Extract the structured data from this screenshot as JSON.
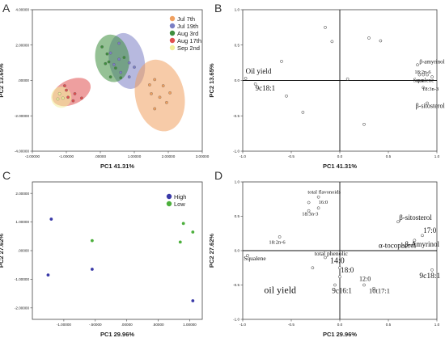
{
  "chart_data": [
    {
      "panel": "A",
      "type": "scatter",
      "xlabel": "PC1 41.31%",
      "ylabel": "PC2 13.65%",
      "xlim": [
        -2.0,
        3.0
      ],
      "ylim": [
        -4.0,
        4.0
      ],
      "x_ticks": [
        "-2.00000",
        "-1.00000",
        ".00000",
        "1.00000",
        "2.00000",
        "3.00000"
      ],
      "y_ticks": [
        "4.00000",
        "2.00000",
        ".00000",
        "-2.00000",
        "-4.00000"
      ],
      "legend_position": "top-right",
      "series": [
        {
          "name": "Jul 7th",
          "color": "#f0a060",
          "points": [
            [
              1.45,
              -0.25
            ],
            [
              1.6,
              0.05
            ],
            [
              1.85,
              -0.3
            ],
            [
              1.5,
              -0.75
            ],
            [
              1.75,
              -0.95
            ],
            [
              1.95,
              -1.25
            ],
            [
              1.6,
              -1.6
            ],
            [
              2.05,
              -0.7
            ]
          ],
          "ellipse": {
            "cx": 1.75,
            "cy": -0.85,
            "rx": 0.72,
            "ry": 2.05,
            "angle": -12
          }
        },
        {
          "name": "Jul 19th",
          "color": "#7b7fc4",
          "points": [
            [
              0.3,
              1.55
            ],
            [
              0.55,
              2.1
            ],
            [
              0.55,
              1.2
            ],
            [
              0.85,
              1.0
            ],
            [
              0.6,
              0.45
            ],
            [
              0.85,
              0.2
            ],
            [
              1.0,
              0.75
            ],
            [
              0.4,
              0.9
            ]
          ],
          "ellipse": {
            "cx": 0.78,
            "cy": 1.1,
            "rx": 0.52,
            "ry": 1.6,
            "angle": -12
          }
        },
        {
          "name": "Aug 3rd",
          "color": "#3e8e3e",
          "points": [
            [
              0.05,
              1.9
            ],
            [
              0.2,
              1.5
            ],
            [
              0.25,
              1.05
            ],
            [
              0.45,
              0.7
            ],
            [
              0.3,
              0.2
            ],
            [
              0.6,
              0.15
            ],
            [
              0.7,
              1.3
            ],
            [
              0.15,
              0.95
            ]
          ],
          "ellipse": {
            "cx": 0.35,
            "cy": 1.25,
            "rx": 0.5,
            "ry": 1.35,
            "angle": -8
          }
        },
        {
          "name": "Aug 17th",
          "color": "#e05050",
          "points": [
            [
              -1.05,
              -0.3
            ],
            [
              -1.0,
              -0.55
            ],
            [
              -0.75,
              -0.75
            ],
            [
              -0.95,
              -0.95
            ],
            [
              -0.55,
              -1.0
            ],
            [
              -0.8,
              -1.15
            ]
          ],
          "ellipse": {
            "cx": -0.85,
            "cy": -0.65,
            "rx": 0.6,
            "ry": 0.7,
            "angle": -25
          }
        },
        {
          "name": "Sep 2nd",
          "color": "#f2ef9a",
          "points": [
            [
              -1.2,
              -0.75
            ],
            [
              -1.1,
              -1.0
            ],
            [
              -1.25,
              -1.05
            ]
          ],
          "ellipse": {
            "cx": -1.15,
            "cy": -0.95,
            "rx": 0.3,
            "ry": 0.6,
            "angle": 0
          }
        }
      ]
    },
    {
      "panel": "B",
      "type": "scatter",
      "xlabel": "PC1 41.31%",
      "ylabel": "PC2 13.65%",
      "xlim": [
        -1.0,
        1.0
      ],
      "ylim": [
        -1.0,
        1.0
      ],
      "x_ticks": [
        "-1.0",
        "-0.5",
        "0.0",
        "0.5",
        "1.0"
      ],
      "y_ticks": [
        "1.0",
        "0.5",
        "0.0",
        "-0.5",
        "-1.0"
      ],
      "points": [
        [
          -0.97,
          0.03
        ],
        [
          -0.87,
          -0.05
        ],
        [
          -0.6,
          0.27
        ],
        [
          -0.55,
          -0.22
        ],
        [
          -0.38,
          -0.45
        ],
        [
          -0.15,
          0.75
        ],
        [
          -0.08,
          0.55
        ],
        [
          0.08,
          0.02
        ],
        [
          0.25,
          -0.62
        ],
        [
          0.3,
          0.6
        ],
        [
          0.42,
          0.56
        ],
        [
          0.8,
          0.22
        ],
        [
          0.82,
          0.08
        ],
        [
          0.86,
          0.08
        ],
        [
          0.86,
          -0.1
        ],
        [
          0.9,
          -0.32
        ],
        [
          0.9,
          0.08
        ],
        [
          0.95,
          0.05
        ]
      ],
      "labels": [
        {
          "text": "Oil yield",
          "x": -0.97,
          "y": 0.1,
          "size": 9
        },
        {
          "text": "9c18:1",
          "x": -0.87,
          "y": -0.14,
          "size": 9
        },
        {
          "text": "β-amyrinol",
          "x": 0.82,
          "y": 0.24,
          "size": 7
        },
        {
          "text": "18:2n-6",
          "x": 0.77,
          "y": 0.1,
          "size": 6.5
        },
        {
          "text": "16:0",
          "x": 0.78,
          "y": -0.02,
          "size": 5.5
        },
        {
          "text": "Squalene",
          "x": 0.97,
          "y": -0.02,
          "size": 7
        },
        {
          "text": "18:3n-3",
          "x": 0.85,
          "y": -0.14,
          "size": 6.5
        },
        {
          "text": "β-sitosterol",
          "x": 0.78,
          "y": -0.39,
          "size": 8
        }
      ]
    },
    {
      "panel": "C",
      "type": "scatter",
      "xlabel": "PC1 29.96%",
      "ylabel": "PC2 27.62%",
      "xlim": [
        -1.5,
        1.2
      ],
      "ylim": [
        -2.4,
        2.4
      ],
      "x_ticks": [
        "-1.00000",
        "-.50000",
        ".00000",
        ".50000",
        "1.00000"
      ],
      "y_ticks": [
        "2.00000",
        "1.00000",
        ".00000",
        "-1.00000",
        "-2.00000"
      ],
      "legend_position": "top-right",
      "series": [
        {
          "name": "High",
          "color": "#3a3aa8",
          "points": [
            [
              -1.2,
              1.1
            ],
            [
              -1.25,
              -0.85
            ],
            [
              -0.55,
              -0.65
            ],
            [
              1.05,
              -1.75
            ]
          ]
        },
        {
          "name": "Low",
          "color": "#4caf3c",
          "points": [
            [
              -0.55,
              0.35
            ],
            [
              0.9,
              0.95
            ],
            [
              1.05,
              0.65
            ],
            [
              0.85,
              0.3
            ]
          ]
        }
      ]
    },
    {
      "panel": "D",
      "type": "scatter",
      "xlabel": "PC1 29.96%",
      "ylabel": "PC2 27.62%",
      "xlim": [
        -1.0,
        1.0
      ],
      "ylim": [
        -1.0,
        1.0
      ],
      "x_ticks": [
        "-1.0",
        "-0.5",
        "0.0",
        "0.5",
        "1.0"
      ],
      "y_ticks": [
        "1.0",
        "0.5",
        "0.0",
        "-0.5",
        "-1.0"
      ],
      "points": [
        [
          -0.95,
          -0.07
        ],
        [
          -0.62,
          0.2
        ],
        [
          -0.32,
          0.7
        ],
        [
          -0.32,
          0.58
        ],
        [
          -0.22,
          0.78
        ],
        [
          -0.22,
          0.62
        ],
        [
          -0.28,
          -0.25
        ],
        [
          -0.15,
          -0.1
        ],
        [
          -0.05,
          -0.5
        ],
        [
          0.0,
          -0.25
        ],
        [
          0.0,
          -0.38
        ],
        [
          0.25,
          -0.5
        ],
        [
          0.35,
          -0.55
        ],
        [
          0.6,
          0.42
        ],
        [
          0.65,
          0.06
        ],
        [
          0.77,
          0.15
        ],
        [
          0.85,
          0.22
        ],
        [
          0.95,
          -0.28
        ]
      ],
      "labels": [
        {
          "text": "total flavonoids",
          "x": -0.33,
          "y": 0.83,
          "size": 6.5
        },
        {
          "text": "16:0",
          "x": -0.22,
          "y": 0.68,
          "size": 6.5
        },
        {
          "text": "18:3n-3",
          "x": -0.39,
          "y": 0.51,
          "size": 6.5
        },
        {
          "text": "18:2n-6",
          "x": -0.73,
          "y": 0.1,
          "size": 6.5
        },
        {
          "text": "β-sitosterol",
          "x": 0.61,
          "y": 0.45,
          "size": 9
        },
        {
          "text": "17:0",
          "x": 0.86,
          "y": 0.26,
          "size": 9
        },
        {
          "text": "α-tocopherol",
          "x": 0.4,
          "y": 0.04,
          "size": 9
        },
        {
          "text": "β-Amyrinol",
          "x": 0.67,
          "y": 0.06,
          "size": 9
        },
        {
          "text": "Squalene",
          "x": -0.99,
          "y": -0.14,
          "size": 7.5
        },
        {
          "text": "total phenolic",
          "x": -0.26,
          "y": -0.07,
          "size": 7.5
        },
        {
          "text": "14:0",
          "x": -0.1,
          "y": -0.18,
          "size": 10
        },
        {
          "text": "18:0",
          "x": 0.01,
          "y": -0.32,
          "size": 9
        },
        {
          "text": "12:0",
          "x": 0.2,
          "y": -0.44,
          "size": 8
        },
        {
          "text": "9c18:1",
          "x": 0.82,
          "y": -0.4,
          "size": 9.5
        },
        {
          "text": "oil yield",
          "x": -0.78,
          "y": -0.62,
          "size": 12
        },
        {
          "text": "9c16:1",
          "x": -0.08,
          "y": -0.62,
          "size": 9
        },
        {
          "text": "10t17:1",
          "x": 0.3,
          "y": -0.62,
          "size": 8.5
        }
      ]
    }
  ],
  "panels": {
    "A": "A",
    "B": "B",
    "C": "C",
    "D": "D"
  }
}
